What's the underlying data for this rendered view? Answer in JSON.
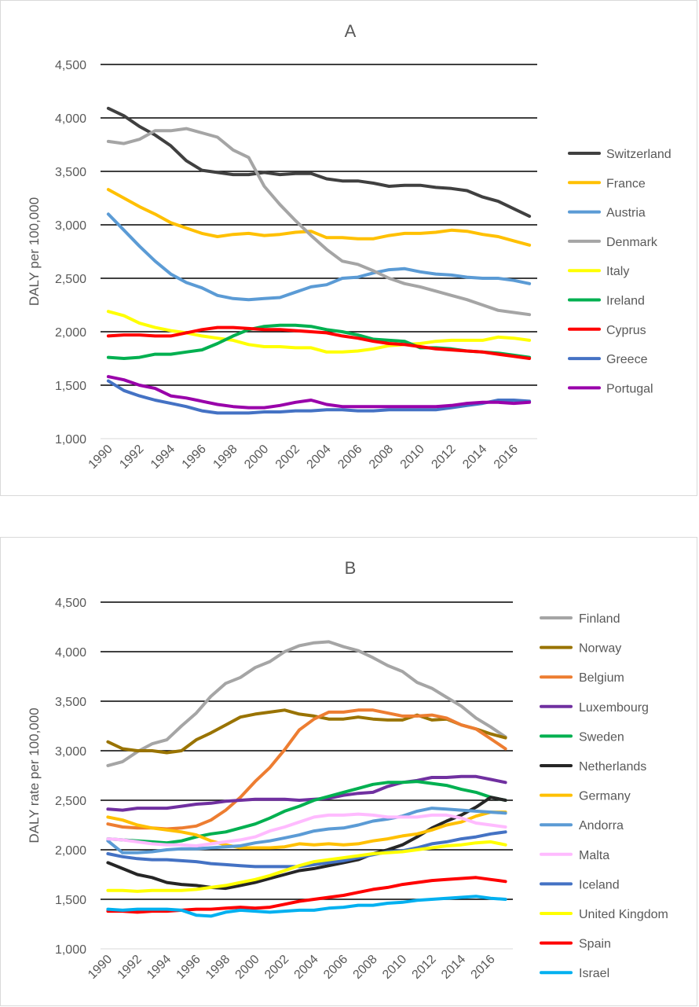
{
  "chart_data": [
    {
      "type": "line",
      "title": "A",
      "ylabel": "DALY per 100,000",
      "xlabel": "",
      "ylim": [
        1000,
        4500
      ],
      "yticks": [
        "1,000",
        "1,500",
        "2,000",
        "2,500",
        "3,000",
        "3,500",
        "4,000",
        "4,500"
      ],
      "x": [
        1990,
        1991,
        1992,
        1993,
        1994,
        1995,
        1996,
        1997,
        1998,
        1999,
        2000,
        2001,
        2002,
        2003,
        2004,
        2005,
        2006,
        2007,
        2008,
        2009,
        2010,
        2011,
        2012,
        2013,
        2014,
        2015,
        2016,
        2017
      ],
      "xticks": [
        "1990",
        "1992",
        "1994",
        "1996",
        "1998",
        "2000",
        "2002",
        "2004",
        "2006",
        "2008",
        "2010",
        "2012",
        "2014",
        "2016"
      ],
      "grid": "horizontal",
      "legend_position": "right",
      "series": [
        {
          "name": "Switzerland",
          "color": "#404040",
          "values": [
            4090,
            4020,
            3920,
            3840,
            3740,
            3600,
            3510,
            3490,
            3470,
            3470,
            3490,
            3470,
            3480,
            3480,
            3430,
            3410,
            3410,
            3390,
            3360,
            3370,
            3370,
            3350,
            3340,
            3320,
            3260,
            3220,
            3150,
            3080
          ]
        },
        {
          "name": "France",
          "color": "#ffc000",
          "values": [
            3330,
            3250,
            3170,
            3100,
            3020,
            2970,
            2920,
            2890,
            2910,
            2920,
            2900,
            2910,
            2930,
            2940,
            2880,
            2880,
            2870,
            2870,
            2900,
            2920,
            2920,
            2930,
            2950,
            2940,
            2910,
            2890,
            2850,
            2810
          ]
        },
        {
          "name": "Austria",
          "color": "#5b9bd5",
          "values": [
            3100,
            2950,
            2800,
            2660,
            2540,
            2460,
            2410,
            2340,
            2310,
            2300,
            2310,
            2320,
            2370,
            2420,
            2440,
            2500,
            2510,
            2550,
            2580,
            2590,
            2560,
            2540,
            2530,
            2510,
            2500,
            2500,
            2480,
            2450
          ]
        },
        {
          "name": "Denmark",
          "color": "#a5a5a5",
          "values": [
            3780,
            3760,
            3800,
            3880,
            3880,
            3900,
            3860,
            3820,
            3700,
            3630,
            3360,
            3190,
            3040,
            2900,
            2770,
            2660,
            2630,
            2570,
            2500,
            2450,
            2420,
            2380,
            2340,
            2300,
            2250,
            2200,
            2180,
            2160
          ]
        },
        {
          "name": "Italy",
          "color": "#ffff00",
          "values": [
            2190,
            2150,
            2080,
            2040,
            2010,
            1990,
            1960,
            1940,
            1920,
            1880,
            1860,
            1860,
            1850,
            1850,
            1810,
            1810,
            1820,
            1840,
            1870,
            1880,
            1890,
            1910,
            1920,
            1920,
            1920,
            1950,
            1940,
            1920
          ]
        },
        {
          "name": "Ireland",
          "color": "#00b050",
          "values": [
            1760,
            1750,
            1760,
            1790,
            1790,
            1810,
            1830,
            1890,
            1960,
            2020,
            2050,
            2060,
            2060,
            2050,
            2020,
            2000,
            1970,
            1930,
            1920,
            1910,
            1850,
            1850,
            1840,
            1820,
            1810,
            1800,
            1780,
            1760
          ]
        },
        {
          "name": "Cyprus",
          "color": "#ff0000",
          "values": [
            1960,
            1970,
            1970,
            1960,
            1960,
            1990,
            2020,
            2040,
            2040,
            2030,
            2020,
            2020,
            2010,
            2000,
            1990,
            1960,
            1940,
            1910,
            1890,
            1880,
            1860,
            1840,
            1830,
            1820,
            1810,
            1790,
            1770,
            1750
          ]
        },
        {
          "name": "Greece",
          "color": "#4472c4",
          "values": [
            1540,
            1450,
            1400,
            1360,
            1330,
            1300,
            1260,
            1240,
            1240,
            1240,
            1250,
            1250,
            1260,
            1260,
            1270,
            1270,
            1260,
            1260,
            1270,
            1270,
            1270,
            1270,
            1290,
            1310,
            1330,
            1360,
            1360,
            1350
          ]
        },
        {
          "name": "Portugal",
          "color": "#9900aa",
          "values": [
            1580,
            1550,
            1500,
            1470,
            1400,
            1380,
            1350,
            1320,
            1300,
            1290,
            1290,
            1310,
            1340,
            1360,
            1320,
            1300,
            1300,
            1300,
            1300,
            1300,
            1300,
            1300,
            1310,
            1330,
            1340,
            1340,
            1330,
            1340
          ]
        }
      ]
    },
    {
      "type": "line",
      "title": "B",
      "ylabel": "DALY rate per 100,000",
      "xlabel": "",
      "ylim": [
        1000,
        4500
      ],
      "yticks": [
        "1,000",
        "1,500",
        "2,000",
        "2,500",
        "3,000",
        "3,500",
        "4,000",
        "4,500"
      ],
      "x": [
        1990,
        1991,
        1992,
        1993,
        1994,
        1995,
        1996,
        1997,
        1998,
        1999,
        2000,
        2001,
        2002,
        2003,
        2004,
        2005,
        2006,
        2007,
        2008,
        2009,
        2010,
        2011,
        2012,
        2013,
        2014,
        2015,
        2016,
        2017
      ],
      "xticks": [
        "1990",
        "1992",
        "1994",
        "1996",
        "1998",
        "2000",
        "2002",
        "2004",
        "2006",
        "2008",
        "2010",
        "2012",
        "2014",
        "2016"
      ],
      "grid": "horizontal",
      "legend_position": "right",
      "series": [
        {
          "name": "Finland",
          "color": "#a5a5a5",
          "values": [
            2850,
            2890,
            2990,
            3070,
            3110,
            3250,
            3380,
            3550,
            3680,
            3740,
            3840,
            3900,
            4000,
            4060,
            4090,
            4100,
            4050,
            4010,
            3940,
            3860,
            3800,
            3690,
            3630,
            3540,
            3450,
            3330,
            3240,
            3140
          ]
        },
        {
          "name": "Norway",
          "color": "#997300",
          "values": [
            3090,
            3020,
            3000,
            3000,
            2980,
            3000,
            3110,
            3180,
            3260,
            3340,
            3370,
            3390,
            3410,
            3370,
            3350,
            3320,
            3320,
            3340,
            3320,
            3310,
            3310,
            3360,
            3310,
            3320,
            3260,
            3220,
            3170,
            3130
          ]
        },
        {
          "name": "Belgium",
          "color": "#ed7d31",
          "values": [
            2260,
            2230,
            2220,
            2220,
            2210,
            2220,
            2240,
            2300,
            2400,
            2530,
            2690,
            2830,
            3010,
            3210,
            3320,
            3390,
            3390,
            3410,
            3410,
            3380,
            3350,
            3350,
            3360,
            3330,
            3260,
            3220,
            3120,
            3020
          ]
        },
        {
          "name": "Luxembourg",
          "color": "#7030a0",
          "values": [
            2410,
            2400,
            2420,
            2420,
            2420,
            2440,
            2460,
            2470,
            2490,
            2500,
            2510,
            2510,
            2510,
            2500,
            2510,
            2520,
            2550,
            2570,
            2580,
            2640,
            2680,
            2700,
            2730,
            2730,
            2740,
            2740,
            2710,
            2680
          ]
        },
        {
          "name": "Sweden",
          "color": "#00b050",
          "values": [
            2110,
            2100,
            2090,
            2080,
            2070,
            2090,
            2130,
            2160,
            2180,
            2220,
            2260,
            2320,
            2390,
            2440,
            2500,
            2540,
            2580,
            2620,
            2660,
            2680,
            2680,
            2690,
            2670,
            2650,
            2610,
            2580,
            2530,
            2500
          ]
        },
        {
          "name": "Netherlands",
          "color": "#262626",
          "values": [
            1870,
            1810,
            1750,
            1720,
            1670,
            1650,
            1640,
            1620,
            1610,
            1640,
            1670,
            1710,
            1750,
            1790,
            1810,
            1840,
            1870,
            1900,
            1960,
            2000,
            2050,
            2130,
            2220,
            2290,
            2350,
            2430,
            2530,
            2500
          ]
        },
        {
          "name": "Germany",
          "color": "#ffc000",
          "values": [
            2330,
            2300,
            2250,
            2220,
            2200,
            2180,
            2150,
            2090,
            2050,
            2020,
            2020,
            2020,
            2030,
            2060,
            2050,
            2060,
            2050,
            2060,
            2090,
            2110,
            2140,
            2160,
            2200,
            2250,
            2280,
            2340,
            2380,
            2380
          ]
        },
        {
          "name": "Andorra",
          "color": "#5b9bd5",
          "values": [
            2090,
            1970,
            1970,
            1980,
            2000,
            2010,
            2010,
            2020,
            2030,
            2040,
            2070,
            2090,
            2120,
            2150,
            2190,
            2210,
            2220,
            2250,
            2290,
            2310,
            2340,
            2390,
            2420,
            2410,
            2400,
            2390,
            2380,
            2370
          ]
        },
        {
          "name": "Malta",
          "color": "#ffbbff",
          "values": [
            2110,
            2100,
            2080,
            2060,
            2050,
            2050,
            2040,
            2060,
            2080,
            2100,
            2130,
            2190,
            2230,
            2280,
            2330,
            2350,
            2350,
            2360,
            2350,
            2330,
            2330,
            2330,
            2350,
            2350,
            2320,
            2270,
            2250,
            2230
          ]
        },
        {
          "name": "Iceland",
          "color": "#4472c4",
          "values": [
            1960,
            1930,
            1910,
            1900,
            1900,
            1890,
            1880,
            1860,
            1850,
            1840,
            1830,
            1830,
            1830,
            1830,
            1850,
            1870,
            1890,
            1920,
            1950,
            1980,
            1990,
            2020,
            2060,
            2080,
            2110,
            2130,
            2160,
            2180
          ]
        },
        {
          "name": "United Kingdom",
          "color": "#ffff00",
          "values": [
            1590,
            1590,
            1580,
            1590,
            1590,
            1590,
            1600,
            1620,
            1640,
            1670,
            1700,
            1740,
            1790,
            1840,
            1880,
            1900,
            1920,
            1940,
            1960,
            1970,
            1980,
            2000,
            2020,
            2040,
            2050,
            2070,
            2080,
            2050
          ]
        },
        {
          "name": "Spain",
          "color": "#ff0000",
          "values": [
            1380,
            1380,
            1370,
            1380,
            1380,
            1390,
            1400,
            1400,
            1410,
            1420,
            1410,
            1420,
            1450,
            1480,
            1500,
            1520,
            1540,
            1570,
            1600,
            1620,
            1650,
            1670,
            1690,
            1700,
            1710,
            1720,
            1700,
            1680
          ]
        },
        {
          "name": "Israel",
          "color": "#00b0f0",
          "values": [
            1400,
            1390,
            1400,
            1400,
            1400,
            1390,
            1340,
            1330,
            1370,
            1390,
            1380,
            1370,
            1380,
            1390,
            1390,
            1410,
            1420,
            1440,
            1440,
            1460,
            1470,
            1490,
            1500,
            1510,
            1520,
            1530,
            1510,
            1500
          ]
        }
      ]
    }
  ]
}
